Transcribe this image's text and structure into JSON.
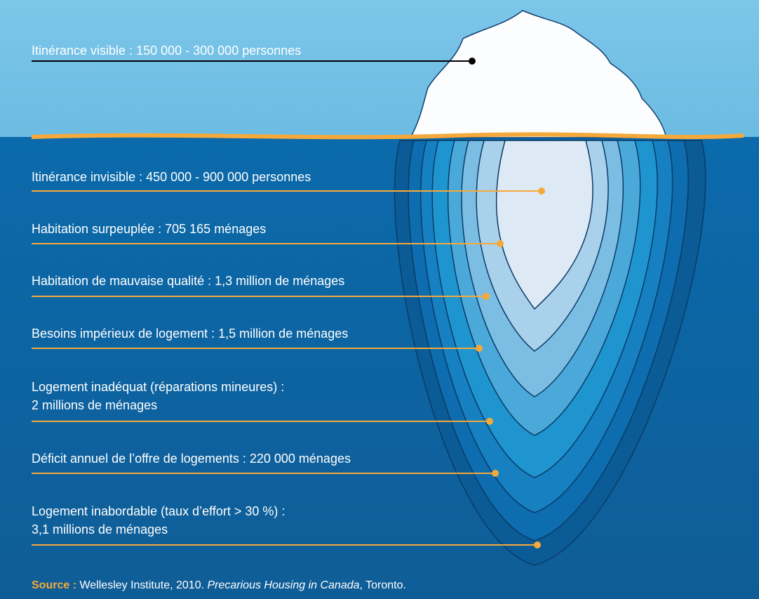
{
  "visible": {
    "lines": [
      "Itinérance visible : 150 000 - 300 000 personnes"
    ]
  },
  "layers": [
    {
      "lines": [
        "Itinérance invisible : 450 000 - 900 000 personnes"
      ]
    },
    {
      "lines": [
        "Habitation surpeuplée : 705 165 ménages"
      ]
    },
    {
      "lines": [
        "Habitation de mauvaise qualité : 1,3 million de ménages"
      ]
    },
    {
      "lines": [
        "Besoins impérieux de logement : 1,5 million de ménages"
      ]
    },
    {
      "lines": [
        "Logement inadéquat (réparations mineures) :",
        "2 millions de ménages"
      ]
    },
    {
      "lines": [
        "Déficit annuel de l’offre de logements : 220 000 ménages"
      ]
    },
    {
      "lines": [
        "Logement inabordable (taux d’effort > 30 %) :",
        "3,1 millions de ménages"
      ]
    }
  ],
  "source": {
    "label": "Source :",
    "text": "Wellesley Institute, 2010.",
    "title": "Precarious Housing in Canada",
    "end": ", Toronto."
  }
}
